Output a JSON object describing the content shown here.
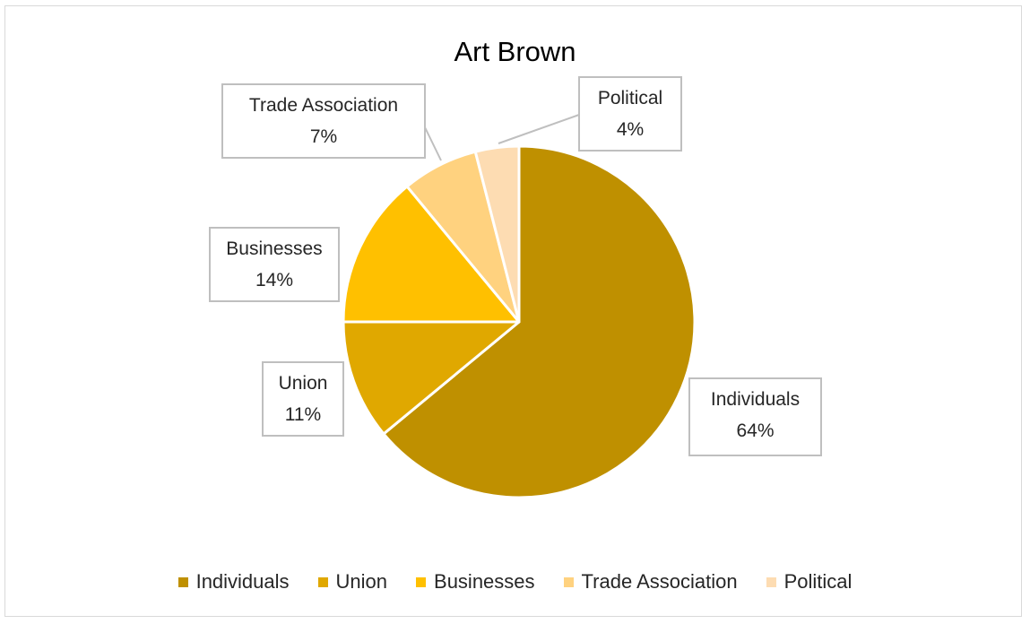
{
  "chart_data": {
    "type": "pie",
    "title": "Art Brown",
    "slices": [
      {
        "name": "Individuals",
        "value": 64,
        "label": "64%",
        "color": "#bf9000",
        "callout": [
          "Individuals",
          "64%"
        ]
      },
      {
        "name": "Union",
        "value": 11,
        "label": "11%",
        "color": "#e0a800",
        "callout": [
          "Union",
          "11%"
        ]
      },
      {
        "name": "Businesses",
        "value": 14,
        "label": "14%",
        "color": "#ffc000",
        "callout": [
          "Businesses",
          "14%"
        ]
      },
      {
        "name": "Trade Association",
        "value": 7,
        "label": "7%",
        "color": "#ffd27f",
        "callout": [
          "Trade Association",
          "7%"
        ]
      },
      {
        "name": "Political",
        "value": 4,
        "label": "4%",
        "color": "#fddcb2",
        "callout": [
          "Political",
          "4%"
        ]
      }
    ],
    "legend_position": "bottom",
    "data_labels": "callouts with category name and percentage"
  }
}
